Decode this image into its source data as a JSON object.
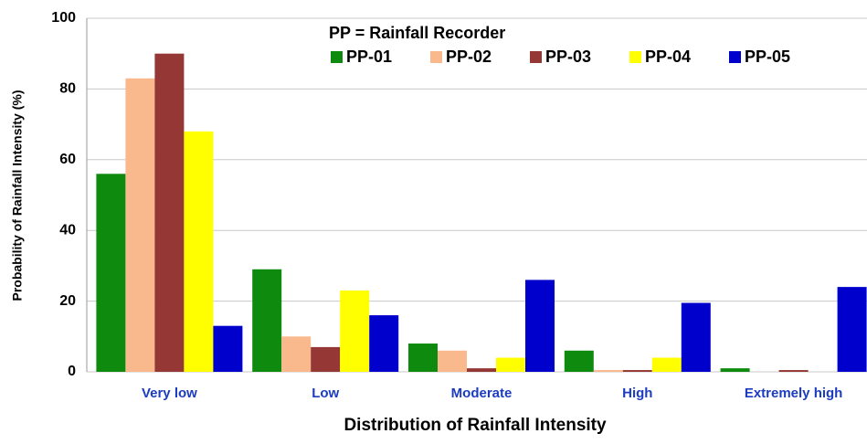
{
  "chart_data": {
    "type": "bar",
    "y_label": "Probability of Rainfall Intensity (%)",
    "x_label": "Distribution of Rainfall Intensity",
    "legend_title": "PP = Rainfall Recorder",
    "categories": [
      "Very low",
      "Low",
      "Moderate",
      "High",
      "Extremely high"
    ],
    "series": [
      {
        "name": "PP-01",
        "color": "#0e8a0e",
        "values": [
          56,
          29,
          8,
          6,
          1
        ]
      },
      {
        "name": "PP-02",
        "color": "#fab98c",
        "values": [
          83,
          10,
          6,
          0.5,
          0
        ]
      },
      {
        "name": "PP-03",
        "color": "#953735",
        "values": [
          90,
          7,
          1,
          0.5,
          0.5
        ]
      },
      {
        "name": "PP-04",
        "color": "#ffff00",
        "values": [
          68,
          23,
          4,
          4,
          0
        ]
      },
      {
        "name": "PP-05",
        "color": "#0000cc",
        "values": [
          13,
          16,
          26,
          19.5,
          24
        ]
      }
    ],
    "ylim": [
      0,
      100
    ],
    "yticks": [
      0,
      20,
      40,
      60,
      80,
      100
    ],
    "grid": true,
    "legend": "top"
  }
}
